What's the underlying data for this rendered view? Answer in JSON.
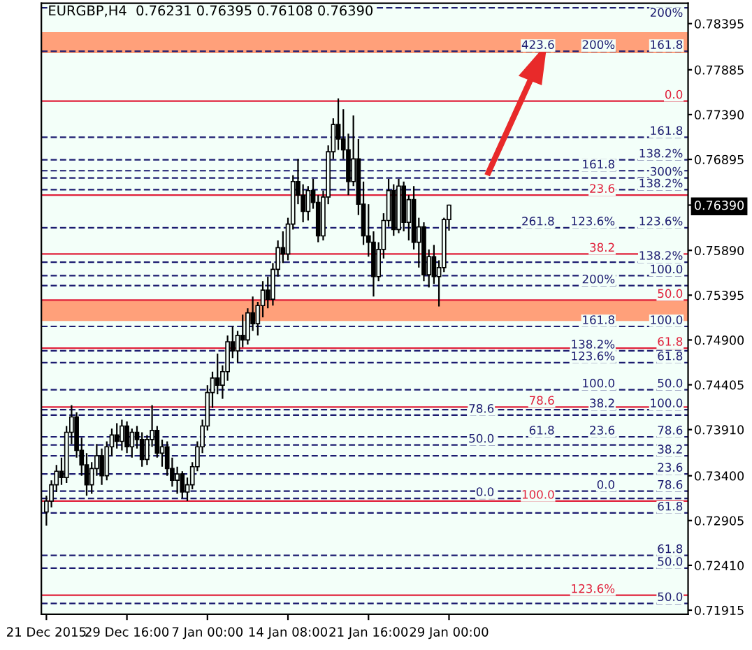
{
  "chart_data": {
    "type": "candlestick",
    "title": "EURGBP,H4  0.76231 0.76395 0.76108 0.76390",
    "categories": [
      "21 Dec 2015",
      null,
      null,
      null,
      null,
      null,
      null,
      null,
      null,
      null,
      null,
      null,
      null,
      null,
      null,
      null,
      "29 Dec 16:00",
      null,
      null,
      null,
      null,
      null,
      null,
      null,
      null,
      null,
      null,
      null,
      null,
      null,
      null,
      null,
      "7 Jan 00:00",
      null,
      null,
      null,
      null,
      null,
      null,
      null,
      null,
      null,
      null,
      null,
      null,
      null,
      null,
      null,
      "14 Jan 08:00",
      null,
      null,
      null,
      null,
      null,
      null,
      null,
      null,
      null,
      null,
      null,
      null,
      null,
      null,
      null,
      "21 Jan 16:00",
      null,
      null,
      null,
      null,
      null,
      null,
      null,
      null,
      null,
      null,
      null,
      null,
      null,
      null,
      null,
      "29 Jan 00:00",
      null,
      null,
      null,
      null,
      null,
      null,
      null,
      null,
      null,
      null,
      null,
      null,
      null,
      null,
      null,
      null,
      null,
      null,
      null,
      null,
      null,
      null,
      null,
      null,
      null,
      null,
      null,
      null,
      null,
      null,
      null,
      null,
      null,
      null,
      null,
      null,
      null,
      null,
      null,
      null,
      null,
      null,
      null,
      null,
      null,
      null,
      null
    ],
    "ohlc": [
      [
        0.73,
        0.7318,
        0.7285,
        0.7312
      ],
      [
        0.7312,
        0.7335,
        0.7305,
        0.733
      ],
      [
        0.733,
        0.7352,
        0.7322,
        0.7345
      ],
      [
        0.7345,
        0.736,
        0.733,
        0.7338
      ],
      [
        0.7338,
        0.7395,
        0.7332,
        0.7388
      ],
      [
        0.7388,
        0.7418,
        0.7375,
        0.7405
      ],
      [
        0.7405,
        0.741,
        0.736,
        0.7368
      ],
      [
        0.7368,
        0.7382,
        0.734,
        0.7352
      ],
      [
        0.7352,
        0.7365,
        0.7318,
        0.733
      ],
      [
        0.733,
        0.7355,
        0.732,
        0.7348
      ],
      [
        0.7348,
        0.7375,
        0.734,
        0.7362
      ],
      [
        0.7362,
        0.737,
        0.733,
        0.734
      ],
      [
        0.734,
        0.7378,
        0.7335,
        0.7372
      ],
      [
        0.7372,
        0.7392,
        0.7362,
        0.7385
      ],
      [
        0.7385,
        0.7398,
        0.737,
        0.7378
      ],
      [
        0.7378,
        0.7402,
        0.7368,
        0.7395
      ],
      [
        0.7395,
        0.74,
        0.7365,
        0.7372
      ],
      [
        0.7372,
        0.7392,
        0.736,
        0.7388
      ],
      [
        0.7388,
        0.7395,
        0.737,
        0.738
      ],
      [
        0.738,
        0.7388,
        0.735,
        0.7358
      ],
      [
        0.7358,
        0.7385,
        0.7352,
        0.738
      ],
      [
        0.738,
        0.7418,
        0.7372,
        0.739
      ],
      [
        0.739,
        0.7395,
        0.736,
        0.7365
      ],
      [
        0.7365,
        0.738,
        0.735,
        0.7372
      ],
      [
        0.7372,
        0.7378,
        0.734,
        0.7348
      ],
      [
        0.7348,
        0.736,
        0.7328,
        0.7335
      ],
      [
        0.7335,
        0.735,
        0.732,
        0.7342
      ],
      [
        0.7342,
        0.7345,
        0.7315,
        0.7322
      ],
      [
        0.7322,
        0.7338,
        0.7312,
        0.733
      ],
      [
        0.733,
        0.7355,
        0.7325,
        0.735
      ],
      [
        0.735,
        0.7378,
        0.7345,
        0.7372
      ],
      [
        0.7372,
        0.7402,
        0.7365,
        0.7395
      ],
      [
        0.7395,
        0.744,
        0.739,
        0.7432
      ],
      [
        0.7432,
        0.7455,
        0.7415,
        0.7448
      ],
      [
        0.7448,
        0.7475,
        0.743,
        0.744
      ],
      [
        0.744,
        0.7462,
        0.7425,
        0.7455
      ],
      [
        0.7455,
        0.7495,
        0.7445,
        0.7488
      ],
      [
        0.7488,
        0.7505,
        0.747,
        0.7478
      ],
      [
        0.7478,
        0.75,
        0.7465,
        0.7495
      ],
      [
        0.7495,
        0.7518,
        0.7482,
        0.749
      ],
      [
        0.749,
        0.7525,
        0.7485,
        0.752
      ],
      [
        0.752,
        0.7538,
        0.75,
        0.7508
      ],
      [
        0.7508,
        0.7532,
        0.7495,
        0.7528
      ],
      [
        0.7528,
        0.7555,
        0.7515,
        0.7545
      ],
      [
        0.7545,
        0.756,
        0.7525,
        0.7535
      ],
      [
        0.7535,
        0.7575,
        0.7528,
        0.7568
      ],
      [
        0.7568,
        0.76,
        0.756,
        0.7592
      ],
      [
        0.7592,
        0.761,
        0.7575,
        0.7585
      ],
      [
        0.7585,
        0.7625,
        0.7578,
        0.7618
      ],
      [
        0.7618,
        0.7672,
        0.7612,
        0.7665
      ],
      [
        0.7665,
        0.769,
        0.764,
        0.765
      ],
      [
        0.765,
        0.7662,
        0.762,
        0.7632
      ],
      [
        0.7632,
        0.766,
        0.7622,
        0.7655
      ],
      [
        0.7655,
        0.7668,
        0.7635,
        0.7642
      ],
      [
        0.7642,
        0.765,
        0.7598,
        0.7605
      ],
      [
        0.7605,
        0.7655,
        0.76,
        0.7648
      ],
      [
        0.7648,
        0.7705,
        0.764,
        0.7698
      ],
      [
        0.7698,
        0.7735,
        0.769,
        0.7728
      ],
      [
        0.7728,
        0.7757,
        0.77,
        0.7712
      ],
      [
        0.7712,
        0.7745,
        0.769,
        0.77
      ],
      [
        0.77,
        0.7718,
        0.765,
        0.7665
      ],
      [
        0.7665,
        0.7738,
        0.766,
        0.769
      ],
      [
        0.769,
        0.7712,
        0.7628,
        0.764
      ],
      [
        0.764,
        0.7665,
        0.7595,
        0.7605
      ],
      [
        0.7605,
        0.764,
        0.7582,
        0.7598
      ],
      [
        0.7598,
        0.761,
        0.7538,
        0.756
      ],
      [
        0.756,
        0.7598,
        0.7555,
        0.759
      ],
      [
        0.759,
        0.763,
        0.758,
        0.7622
      ],
      [
        0.7622,
        0.7668,
        0.7615,
        0.7655
      ],
      [
        0.7655,
        0.7662,
        0.7605,
        0.7612
      ],
      [
        0.7612,
        0.7668,
        0.7608,
        0.766
      ],
      [
        0.766,
        0.7665,
        0.761,
        0.762
      ],
      [
        0.762,
        0.765,
        0.76,
        0.7645
      ],
      [
        0.7645,
        0.766,
        0.759,
        0.7598
      ],
      [
        0.7598,
        0.7625,
        0.757,
        0.7615
      ],
      [
        0.7615,
        0.762,
        0.7555,
        0.7562
      ],
      [
        0.7562,
        0.759,
        0.7548,
        0.7582
      ],
      [
        0.7582,
        0.7595,
        0.7552,
        0.756
      ],
      [
        0.756,
        0.7578,
        0.7527,
        0.757
      ],
      [
        0.757,
        0.7625,
        0.7565,
        0.7623
      ],
      [
        0.76231,
        0.76395,
        0.76108,
        0.7639
      ],
      null,
      null,
      null,
      null,
      null,
      null,
      null,
      null,
      null,
      null,
      null,
      null,
      null,
      null,
      null,
      null,
      null,
      null,
      null,
      null,
      null,
      null,
      null,
      null,
      null,
      null,
      null,
      null,
      null,
      null,
      null,
      null,
      null,
      null,
      null,
      null,
      null,
      null,
      null,
      null,
      null,
      null,
      null,
      null,
      null,
      null,
      null
    ],
    "color": "#000000",
    "ylim": [
      0.7187,
      0.7862
    ],
    "yticks": [
      0.78395,
      0.77885,
      {
        "value": 0.7739,
        "label": "0.77390"
      },
      0.76895,
      {
        "value": 0.7639,
        "label": "0.76390"
      },
      {
        "value": 0.7589,
        "label": "0.75890"
      },
      0.75395,
      {
        "value": 0.749,
        "label": "0.74900"
      },
      0.74405,
      {
        "value": 0.7391,
        "label": "0.73910"
      },
      {
        "value": 0.734,
        "label": "0.73400"
      },
      0.72905,
      {
        "value": 0.7241,
        "label": "0.72410"
      },
      0.71915
    ],
    "bands": [
      {
        "axis": "y",
        "from": 0.7807,
        "to": 0.783,
        "color": "#ffa07a"
      },
      {
        "axis": "y",
        "from": 0.7511,
        "to": 0.7534,
        "color": "#ffa07a"
      }
    ],
    "ref_lines": [
      {
        "axis": "y",
        "value": 0.7857,
        "color": "#1c1c70",
        "line_style": "dashed"
      },
      {
        "axis": "y",
        "value": 0.7809,
        "color": "#1c1c70",
        "line_style": "dashed"
      },
      {
        "axis": "y",
        "value": 0.7714,
        "color": "#1c1c70",
        "line_style": "dashed"
      },
      {
        "axis": "y",
        "value": 0.7689,
        "color": "#1c1c70",
        "line_style": "dashed"
      },
      {
        "axis": "y",
        "value": 0.7677,
        "color": "#1c1c70",
        "line_style": "dashed"
      },
      {
        "axis": "y",
        "value": 0.7669,
        "color": "#1c1c70",
        "line_style": "dashed"
      },
      {
        "axis": "y",
        "value": 0.7656,
        "color": "#1c1c70",
        "line_style": "dashed"
      },
      {
        "axis": "y",
        "value": 0.7614,
        "color": "#1c1c70",
        "line_style": "dashed"
      },
      {
        "axis": "y",
        "value": 0.7576,
        "color": "#1c1c70",
        "line_style": "dashed"
      },
      {
        "axis": "y",
        "value": 0.7561,
        "color": "#1c1c70",
        "line_style": "dashed"
      },
      {
        "axis": "y",
        "value": 0.755,
        "color": "#1c1c70",
        "line_style": "dashed"
      },
      {
        "axis": "y",
        "value": 0.7505,
        "color": "#1c1c70",
        "line_style": "dashed"
      },
      {
        "axis": "y",
        "value": 0.7478,
        "color": "#1c1c70",
        "line_style": "dashed"
      },
      {
        "axis": "y",
        "value": 0.7465,
        "color": "#1c1c70",
        "line_style": "dashed"
      },
      {
        "axis": "y",
        "value": 0.7435,
        "color": "#1c1c70",
        "line_style": "dashed"
      },
      {
        "axis": "y",
        "value": 0.7413,
        "color": "#1c1c70",
        "line_style": "dashed"
      },
      {
        "axis": "y",
        "value": 0.7407,
        "color": "#1c1c70",
        "line_style": "dashed"
      },
      {
        "axis": "y",
        "value": 0.7383,
        "color": "#1c1c70",
        "line_style": "dashed"
      },
      {
        "axis": "y",
        "value": 0.7374,
        "color": "#1c1c70",
        "line_style": "dashed"
      },
      {
        "axis": "y",
        "value": 0.7362,
        "color": "#1c1c70",
        "line_style": "dashed"
      },
      {
        "axis": "y",
        "value": 0.7342,
        "color": "#1c1c70",
        "line_style": "dashed"
      },
      {
        "axis": "y",
        "value": 0.7323,
        "color": "#1c1c70",
        "line_style": "dashed"
      },
      {
        "axis": "y",
        "value": 0.7315,
        "color": "#1c1c70",
        "line_style": "dashed"
      },
      {
        "axis": "y",
        "value": 0.7299,
        "color": "#1c1c70",
        "line_style": "dashed"
      },
      {
        "axis": "y",
        "value": 0.7252,
        "color": "#1c1c70",
        "line_style": "dashed"
      },
      {
        "axis": "y",
        "value": 0.7238,
        "color": "#1c1c70",
        "line_style": "dashed"
      },
      {
        "axis": "y",
        "value": 0.7199,
        "color": "#1c1c70",
        "line_style": "dashed"
      },
      {
        "axis": "y",
        "value": 0.7754,
        "color": "#e0203a",
        "line_style": "solid"
      },
      {
        "axis": "y",
        "value": 0.765,
        "color": "#e0203a",
        "line_style": "solid"
      },
      {
        "axis": "y",
        "value": 0.7585,
        "color": "#e0203a",
        "line_style": "solid"
      },
      {
        "axis": "y",
        "value": 0.7534,
        "color": "#e0203a",
        "line_style": "solid"
      },
      {
        "axis": "y",
        "value": 0.7481,
        "color": "#e0203a",
        "line_style": "solid"
      },
      {
        "axis": "y",
        "value": 0.7416,
        "color": "#e0203a",
        "line_style": "solid"
      },
      {
        "axis": "y",
        "value": 0.7312,
        "color": "#e0203a",
        "line_style": "solid"
      },
      {
        "axis": "y",
        "value": 0.7208,
        "color": "#e0203a",
        "line_style": "solid"
      }
    ],
    "annotations": [
      {
        "text": "200%",
        "y": 0.7857
      },
      {
        "text": "161.8",
        "y": 0.7809
      },
      {
        "text": "138.2%",
        "y": 0.7689
      },
      {
        "text": "161.8",
        "y": 0.7677
      },
      {
        "text": "123.6%",
        "y": 0.7614
      },
      {
        "text": "138.2%",
        "y": 0.7576
      },
      {
        "text": "100.0",
        "y": 0.7505
      },
      {
        "text": "100.0",
        "y": 0.7413
      },
      {
        "text": "78.6",
        "y": 0.7383
      },
      {
        "text": "78.6",
        "y": 0.7323
      },
      {
        "text": "61.8",
        "y": 0.7299
      },
      {
        "text": "61.8",
        "y": 0.7252
      },
      {
        "text": "50.0",
        "y": 0.7238
      },
      {
        "text": "50.0",
        "y": 0.7199
      },
      {
        "text": "200%",
        "y": 0.7809
      },
      {
        "text": "423.6",
        "y": 0.7809
      },
      {
        "text": "161.8",
        "y": 0.7714
      },
      {
        "text": "138.2%",
        "y": 0.7656
      },
      {
        "text": "123.6%",
        "y": 0.7614
      },
      {
        "text": "100.0",
        "y": 0.7561
      },
      {
        "text": "61.8",
        "y": 0.7465
      },
      {
        "text": "50.0",
        "y": 0.7435
      },
      {
        "text": "38.2",
        "y": 0.7413
      },
      {
        "text": "23.6",
        "y": 0.7383
      },
      {
        "text": "0.0",
        "y": 0.7323
      },
      {
        "text": "0.0",
        "y": 0.7754
      },
      {
        "text": "23.6",
        "y": 0.765
      },
      {
        "text": "38.2",
        "y": 0.7585
      },
      {
        "text": "50.0",
        "y": 0.7534
      },
      {
        "text": "61.8",
        "y": 0.7481
      },
      {
        "text": "78.6",
        "y": 0.7416
      },
      {
        "text": "100.0",
        "y": 0.7312
      },
      {
        "text": "123.6%",
        "y": 0.7208
      },
      {
        "text": "300%",
        "y": 0.7669
      },
      {
        "text": "261.8",
        "y": 0.7614
      },
      {
        "text": "200%",
        "y": 0.755
      },
      {
        "text": "161.8",
        "y": 0.7505
      },
      {
        "text": "138.2%",
        "y": 0.7478
      },
      {
        "text": "123.6%",
        "y": 0.7465
      },
      {
        "text": "100.0",
        "y": 0.7435
      },
      {
        "text": "78.6",
        "y": 0.7407
      },
      {
        "text": "61.8",
        "y": 0.7383
      },
      {
        "text": "50.0",
        "y": 0.7374
      },
      {
        "text": "38.2",
        "y": 0.7362
      },
      {
        "text": "23.6",
        "y": 0.7342
      },
      {
        "text": "0.0",
        "y": 0.7315
      }
    ]
  }
}
